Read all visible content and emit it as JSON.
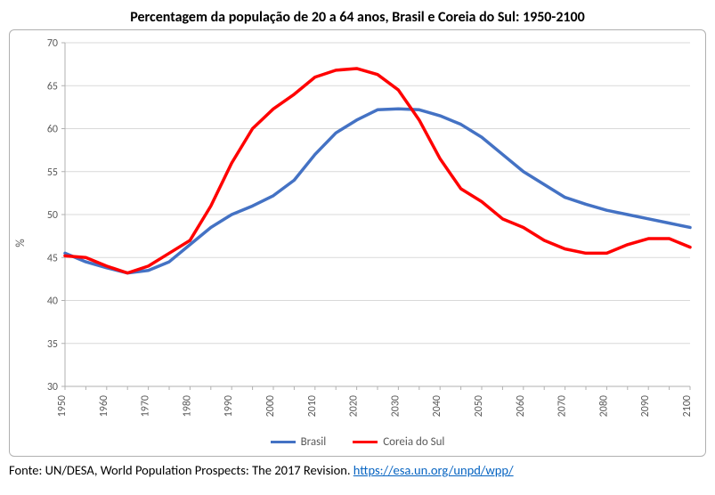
{
  "chart": {
    "type": "line",
    "title": "Percentagem da população de 20 a 64 anos, Brasil e Coreia do Sul: 1950-2100",
    "title_fontsize": 16,
    "ylabel": "%",
    "label_fontsize": 13,
    "background_color": "#ffffff",
    "border_color": "#b0b0b0",
    "grid_color": "#d9d9d9",
    "axis_color": "#b0b0b0",
    "tick_label_color": "#595959",
    "tick_fontsize": 12,
    "xlim": [
      1950,
      2100
    ],
    "ylim": [
      30,
      70
    ],
    "ytick_step": 5,
    "xtick_step": 10,
    "yticks": [
      30,
      35,
      40,
      45,
      50,
      55,
      60,
      65,
      70
    ],
    "xticks": [
      1950,
      1955,
      1960,
      1965,
      1970,
      1975,
      1980,
      1985,
      1990,
      1995,
      2000,
      2005,
      2010,
      2015,
      2020,
      2025,
      2030,
      2035,
      2040,
      2045,
      2050,
      2055,
      2060,
      2065,
      2070,
      2075,
      2080,
      2085,
      2090,
      2095,
      2100
    ],
    "xtick_labels": [
      1950,
      1960,
      1970,
      1980,
      1990,
      2000,
      2010,
      2020,
      2030,
      2040,
      2050,
      2060,
      2070,
      2080,
      2090,
      2100
    ],
    "line_width": 3.5,
    "series": [
      {
        "name": "Brasil",
        "color": "#4472c4",
        "x": [
          1950,
          1955,
          1960,
          1965,
          1970,
          1975,
          1980,
          1985,
          1990,
          1995,
          2000,
          2005,
          2010,
          2015,
          2020,
          2025,
          2030,
          2035,
          2040,
          2045,
          2050,
          2055,
          2060,
          2065,
          2070,
          2075,
          2080,
          2085,
          2090,
          2095,
          2100
        ],
        "y": [
          45.5,
          44.5,
          43.8,
          43.2,
          43.5,
          44.5,
          46.5,
          48.5,
          50.0,
          51.0,
          52.2,
          54.0,
          57.0,
          59.5,
          61.0,
          62.2,
          62.3,
          62.2,
          61.5,
          60.5,
          59.0,
          57.0,
          55.0,
          53.5,
          52.0,
          51.2,
          50.5,
          50.0,
          49.5,
          49.0,
          48.5
        ]
      },
      {
        "name": "Coreia do Sul",
        "color": "#ff0000",
        "x": [
          1950,
          1955,
          1960,
          1965,
          1970,
          1975,
          1980,
          1985,
          1990,
          1995,
          2000,
          2005,
          2010,
          2015,
          2020,
          2025,
          2030,
          2035,
          2040,
          2045,
          2050,
          2055,
          2060,
          2065,
          2070,
          2075,
          2080,
          2085,
          2090,
          2095,
          2100
        ],
        "y": [
          45.2,
          45.0,
          44.0,
          43.2,
          44.0,
          45.5,
          47.0,
          51.0,
          56.0,
          60.0,
          62.3,
          64.0,
          66.0,
          66.8,
          67.0,
          66.3,
          64.5,
          61.0,
          56.5,
          53.0,
          51.5,
          49.5,
          48.5,
          47.0,
          46.0,
          45.5,
          45.5,
          46.5,
          47.2,
          47.2,
          46.2
        ]
      }
    ]
  },
  "source": {
    "prefix": "Fonte: UN/DESA, World Population Prospects: The 2017 Revision. ",
    "link_text": "https://esa.un.org/unpd/wpp/",
    "link_color": "#0563c1"
  }
}
